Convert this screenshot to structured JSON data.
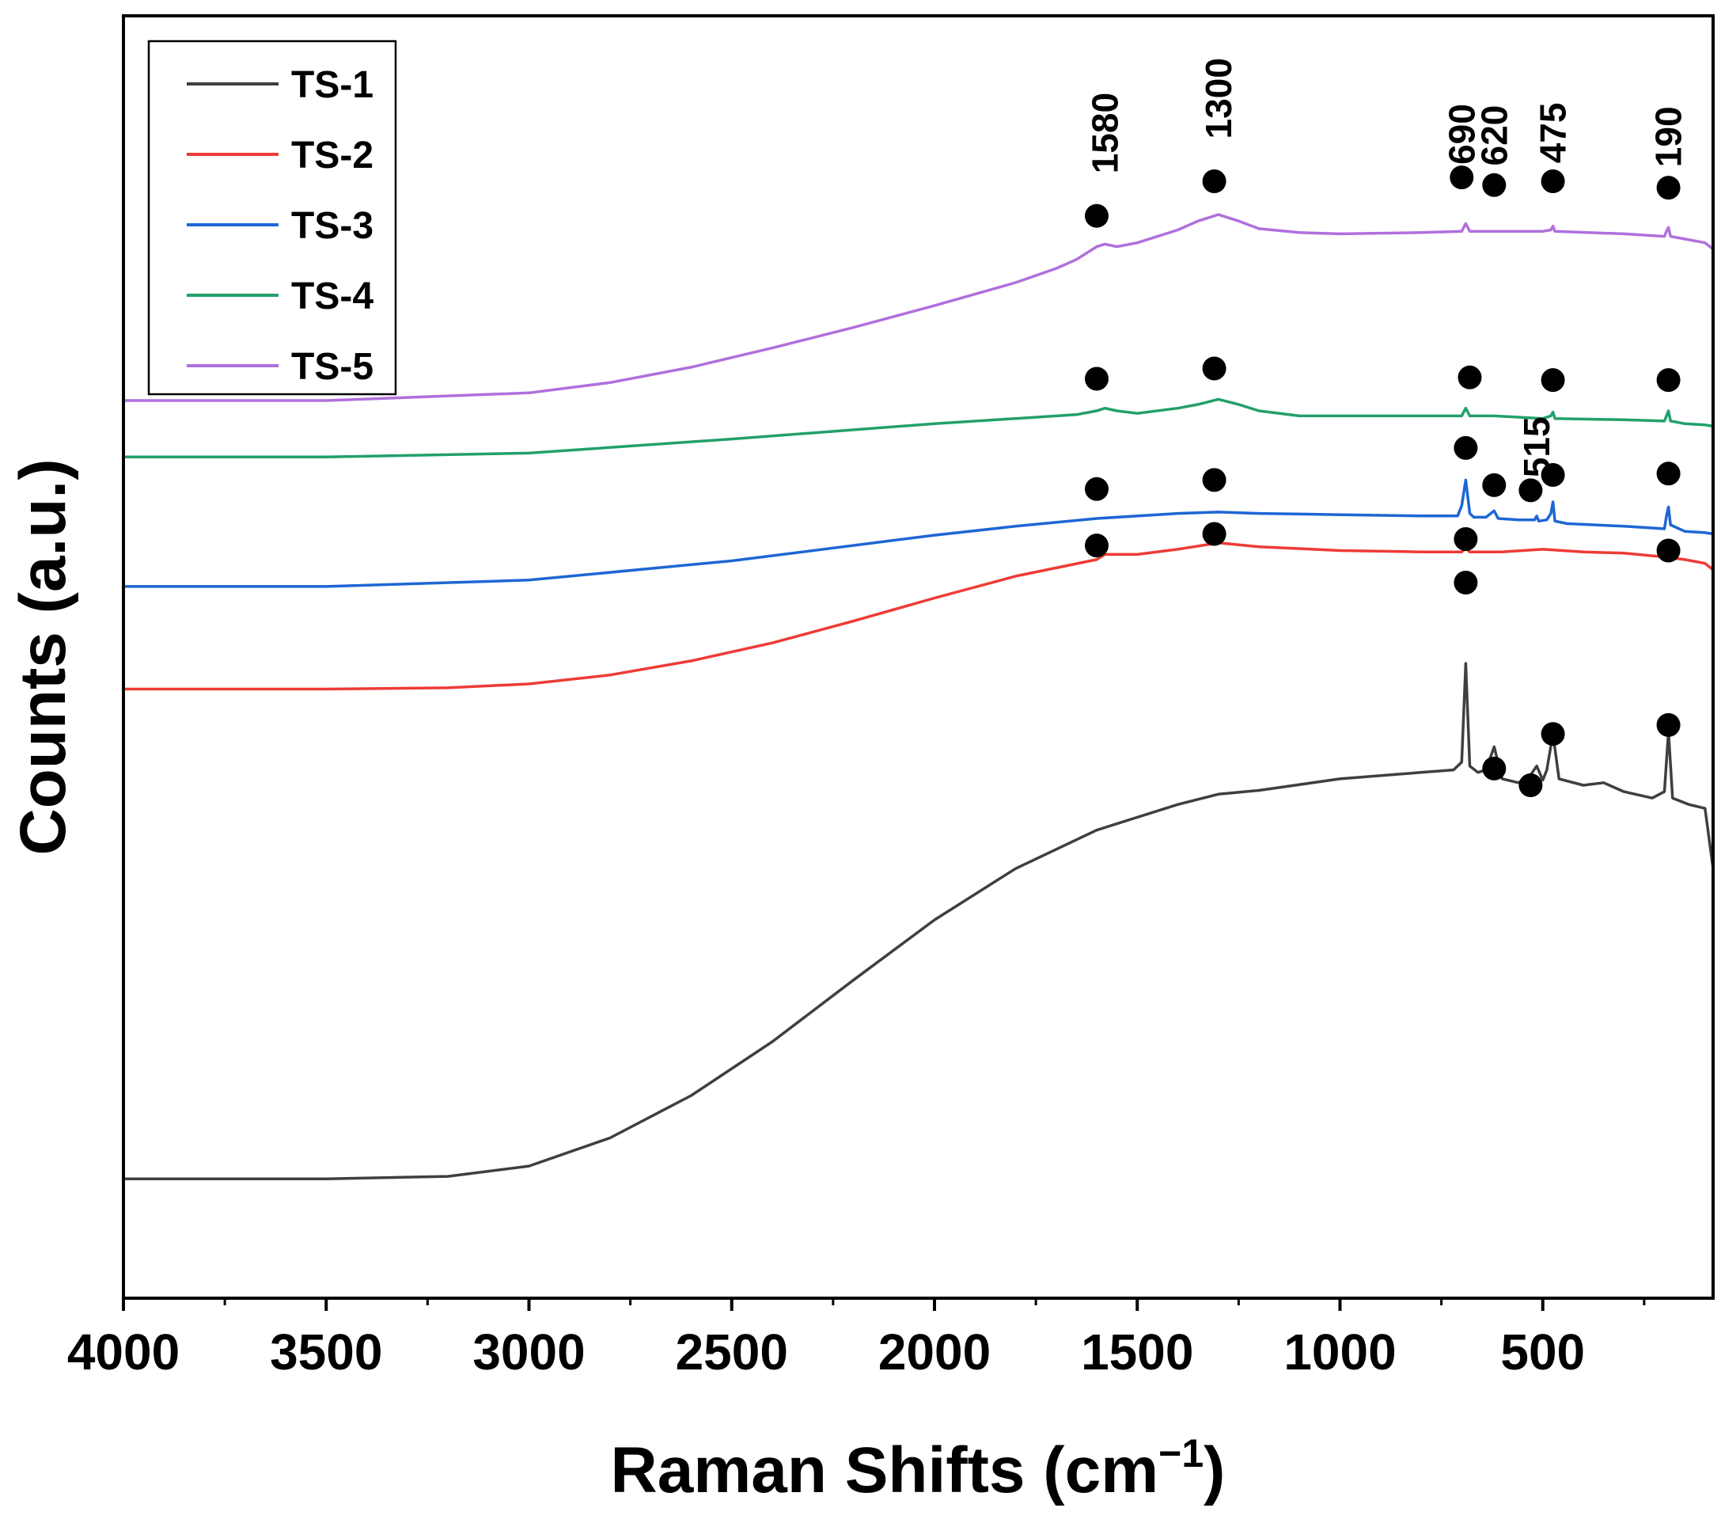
{
  "chart_data": {
    "type": "line",
    "title": "",
    "xlabel": "Raman Shifts (cm",
    "xlabel_sup": "−1",
    "xlabel_end": ")",
    "ylabel": "Counts (a.u.)",
    "xlim": [
      4000,
      80
    ],
    "x_reversed": true,
    "ylim": [
      0,
      1
    ],
    "y_ticks_shown": false,
    "x_ticks": [
      4000,
      3500,
      3000,
      2500,
      2000,
      1500,
      1000,
      500
    ],
    "x_tick_labels": [
      "4000",
      "3500",
      "3000",
      "2500",
      "2000",
      "1500",
      "1000",
      "500"
    ],
    "legend_position": "top-left",
    "series": [
      {
        "name": "TS-1",
        "color": "#3f3f3f",
        "x": [
          4000,
          3500,
          3200,
          3000,
          2800,
          2600,
          2400,
          2200,
          2000,
          1800,
          1600,
          1400,
          1300,
          1200,
          1000,
          800,
          720,
          700,
          690,
          680,
          660,
          640,
          620,
          600,
          560,
          530,
          515,
          500,
          490,
          475,
          460,
          400,
          350,
          300,
          230,
          200,
          190,
          180,
          140,
          100,
          80
        ],
        "y": [
          0.093,
          0.093,
          0.095,
          0.103,
          0.125,
          0.158,
          0.2,
          0.248,
          0.295,
          0.335,
          0.365,
          0.385,
          0.393,
          0.396,
          0.405,
          0.41,
          0.412,
          0.418,
          0.495,
          0.415,
          0.41,
          0.412,
          0.43,
          0.405,
          0.402,
          0.408,
          0.415,
          0.404,
          0.412,
          0.44,
          0.405,
          0.4,
          0.402,
          0.395,
          0.39,
          0.395,
          0.442,
          0.39,
          0.385,
          0.382,
          0.335
        ]
      },
      {
        "name": "TS-2",
        "color": "#ee3b36",
        "x": [
          4000,
          3500,
          3200,
          3000,
          2800,
          2600,
          2400,
          2200,
          2000,
          1800,
          1600,
          1580,
          1500,
          1400,
          1300,
          1200,
          1000,
          800,
          700,
          690,
          680,
          600,
          500,
          400,
          300,
          200,
          150,
          100,
          80
        ],
        "y": [
          0.475,
          0.475,
          0.476,
          0.479,
          0.486,
          0.497,
          0.511,
          0.528,
          0.546,
          0.563,
          0.576,
          0.58,
          0.58,
          0.584,
          0.589,
          0.586,
          0.583,
          0.582,
          0.582,
          0.585,
          0.582,
          0.582,
          0.584,
          0.582,
          0.581,
          0.578,
          0.576,
          0.573,
          0.568
        ]
      },
      {
        "name": "TS-3",
        "color": "#1e66d4",
        "x": [
          4000,
          3500,
          3000,
          2500,
          2000,
          1800,
          1600,
          1400,
          1300,
          1200,
          1000,
          800,
          710,
          700,
          690,
          680,
          670,
          640,
          620,
          610,
          560,
          520,
          515,
          510,
          490,
          480,
          475,
          470,
          440,
          300,
          200,
          195,
          190,
          185,
          150,
          100,
          80
        ],
        "y": [
          0.555,
          0.555,
          0.56,
          0.575,
          0.595,
          0.602,
          0.608,
          0.612,
          0.613,
          0.612,
          0.611,
          0.61,
          0.61,
          0.618,
          0.638,
          0.612,
          0.609,
          0.609,
          0.614,
          0.608,
          0.607,
          0.607,
          0.61,
          0.606,
          0.607,
          0.612,
          0.621,
          0.606,
          0.604,
          0.602,
          0.6,
          0.61,
          0.617,
          0.603,
          0.598,
          0.597,
          0.596
        ]
      },
      {
        "name": "TS-4",
        "color": "#22a06b",
        "x": [
          4000,
          3500,
          3000,
          2500,
          2000,
          1800,
          1650,
          1600,
          1580,
          1550,
          1500,
          1400,
          1350,
          1300,
          1250,
          1200,
          1100,
          1000,
          800,
          700,
          690,
          680,
          620,
          500,
          480,
          475,
          470,
          300,
          200,
          195,
          190,
          185,
          150,
          100,
          80
        ],
        "y": [
          0.656,
          0.656,
          0.659,
          0.67,
          0.682,
          0.686,
          0.689,
          0.692,
          0.694,
          0.692,
          0.69,
          0.694,
          0.697,
          0.701,
          0.697,
          0.692,
          0.688,
          0.688,
          0.688,
          0.688,
          0.694,
          0.688,
          0.688,
          0.686,
          0.688,
          0.691,
          0.686,
          0.685,
          0.684,
          0.688,
          0.692,
          0.684,
          0.682,
          0.681,
          0.68
        ]
      },
      {
        "name": "TS-5",
        "color": "#b06fdc",
        "x": [
          4000,
          3500,
          3000,
          2800,
          2600,
          2400,
          2200,
          2000,
          1800,
          1700,
          1650,
          1600,
          1580,
          1550,
          1500,
          1400,
          1350,
          1300,
          1250,
          1200,
          1100,
          1000,
          800,
          700,
          690,
          680,
          620,
          500,
          480,
          475,
          470,
          300,
          200,
          195,
          190,
          185,
          150,
          100,
          80
        ],
        "y": [
          0.7,
          0.7,
          0.706,
          0.714,
          0.726,
          0.741,
          0.757,
          0.774,
          0.792,
          0.803,
          0.81,
          0.82,
          0.822,
          0.82,
          0.823,
          0.833,
          0.84,
          0.845,
          0.84,
          0.834,
          0.831,
          0.83,
          0.831,
          0.832,
          0.838,
          0.832,
          0.832,
          0.832,
          0.833,
          0.836,
          0.832,
          0.83,
          0.828,
          0.832,
          0.835,
          0.828,
          0.826,
          0.823,
          0.818
        ]
      }
    ],
    "markers": [
      {
        "series": "TS-5",
        "x": 1600,
        "y": 0.844
      },
      {
        "series": "TS-5",
        "x": 1310,
        "y": 0.871
      },
      {
        "series": "TS-5",
        "x": 700,
        "y": 0.874
      },
      {
        "series": "TS-5",
        "x": 620,
        "y": 0.868
      },
      {
        "series": "TS-5",
        "x": 475,
        "y": 0.871
      },
      {
        "series": "TS-5",
        "x": 190,
        "y": 0.866
      },
      {
        "series": "TS-4",
        "x": 1600,
        "y": 0.717
      },
      {
        "series": "TS-4",
        "x": 1310,
        "y": 0.725
      },
      {
        "series": "TS-4",
        "x": 680,
        "y": 0.718
      },
      {
        "series": "TS-4",
        "x": 475,
        "y": 0.716
      },
      {
        "series": "TS-4",
        "x": 190,
        "y": 0.716
      },
      {
        "series": "TS-3",
        "x": 1600,
        "y": 0.631
      },
      {
        "series": "TS-3",
        "x": 1310,
        "y": 0.638
      },
      {
        "series": "TS-3",
        "x": 690,
        "y": 0.663
      },
      {
        "series": "TS-3",
        "x": 620,
        "y": 0.634
      },
      {
        "series": "TS-3",
        "x": 530,
        "y": 0.63
      },
      {
        "series": "TS-3",
        "x": 475,
        "y": 0.642
      },
      {
        "series": "TS-3",
        "x": 190,
        "y": 0.643
      },
      {
        "series": "TS-2",
        "x": 1600,
        "y": 0.587
      },
      {
        "series": "TS-2",
        "x": 1310,
        "y": 0.596
      },
      {
        "series": "TS-2",
        "x": 690,
        "y": 0.592
      },
      {
        "series": "TS-2",
        "x": 190,
        "y": 0.583
      },
      {
        "series": "TS-1",
        "x": 690,
        "y": 0.558
      },
      {
        "series": "TS-1",
        "x": 620,
        "y": 0.413
      },
      {
        "series": "TS-1",
        "x": 530,
        "y": 0.4
      },
      {
        "series": "TS-1",
        "x": 475,
        "y": 0.44
      },
      {
        "series": "TS-1",
        "x": 190,
        "y": 0.447
      }
    ],
    "peak_labels": [
      {
        "text": "1580",
        "x": 1580,
        "y": 0.877
      },
      {
        "text": "1300",
        "x": 1300,
        "y": 0.904
      },
      {
        "text": "690",
        "x": 700,
        "y": 0.884
      },
      {
        "text": "620",
        "x": 620,
        "y": 0.883
      },
      {
        "text": "475",
        "x": 475,
        "y": 0.885
      },
      {
        "text": "190",
        "x": 190,
        "y": 0.882
      },
      {
        "text": "515",
        "x": 515,
        "y": 0.64
      }
    ]
  }
}
